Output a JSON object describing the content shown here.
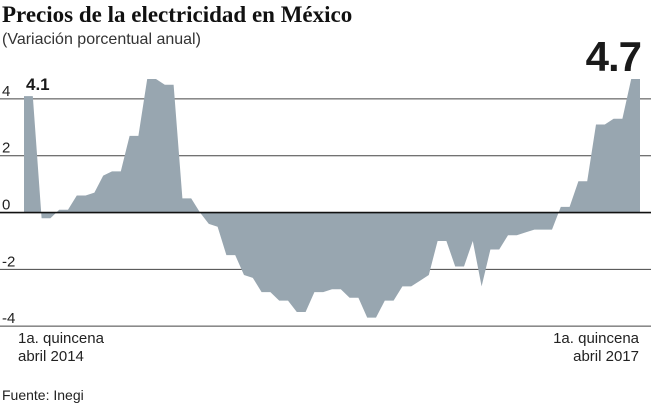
{
  "chart_data": {
    "type": "area",
    "title": "Precios de la electricidad en México",
    "subtitle": "(Variación porcentual anual)",
    "yticks": [
      4,
      2,
      0,
      -2,
      -4
    ],
    "ylim": [
      -4.1,
      5.3
    ],
    "grid": true,
    "x_start_label": [
      "1a. quincena",
      "abril 2014"
    ],
    "x_end_label": [
      "1a. quincena",
      "abril 2017"
    ],
    "annotations": [
      {
        "text": "4.1",
        "at": "first"
      },
      {
        "text": "4.7",
        "at": "last"
      }
    ],
    "source": "Fuente: Inegi",
    "fill_color": "#98a6b0",
    "values": [
      4.1,
      4.1,
      -0.2,
      -0.2,
      0.1,
      0.1,
      0.6,
      0.6,
      0.7,
      1.3,
      1.45,
      1.45,
      2.7,
      2.7,
      4.7,
      4.7,
      4.5,
      4.5,
      0.5,
      0.5,
      0.0,
      -0.4,
      -0.5,
      -1.5,
      -1.5,
      -2.2,
      -2.3,
      -2.8,
      -2.8,
      -3.1,
      -3.1,
      -3.5,
      -3.5,
      -2.8,
      -2.8,
      -2.7,
      -2.7,
      -3.0,
      -3.0,
      -3.7,
      -3.7,
      -3.1,
      -3.1,
      -2.6,
      -2.6,
      -2.4,
      -2.2,
      -1.0,
      -1.0,
      -1.9,
      -1.9,
      -1.0,
      -2.6,
      -1.3,
      -1.3,
      -0.8,
      -0.8,
      -0.7,
      -0.6,
      -0.6,
      -0.6,
      0.2,
      0.2,
      1.1,
      1.1,
      3.1,
      3.1,
      3.3,
      3.3,
      4.7,
      4.7
    ]
  }
}
